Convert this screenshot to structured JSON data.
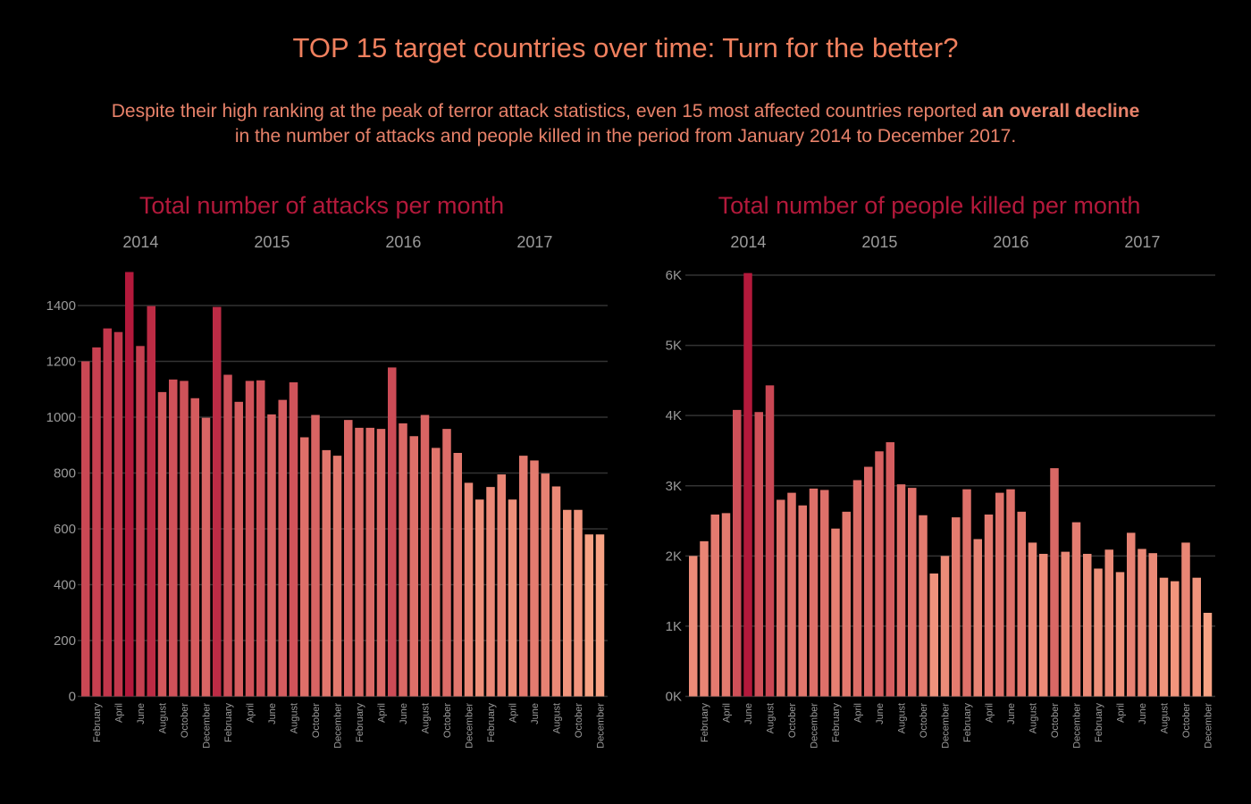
{
  "header": {
    "title": "TOP 15 target countries over time: Turn for the better?",
    "subtitle_part1": "Despite their high ranking at the peak of terror attack statistics, even 15 most affected countries reported ",
    "subtitle_bold": "an overall decline",
    "subtitle_part2": "in the number of attacks and people killed in the period from January 2014 to December 2017."
  },
  "colors": {
    "background": "#000000",
    "title": "#f0805e",
    "chart_title": "#b3193b",
    "bar_dark": "#b3193b",
    "bar_light": "#f7a284"
  },
  "chart_data": [
    {
      "type": "bar",
      "title": "Total number of attacks per month",
      "years": [
        "2014",
        "2015",
        "2016",
        "2017"
      ],
      "month_ticks": [
        "February",
        "April",
        "June",
        "August",
        "October",
        "December"
      ],
      "ylim": [
        0,
        1500
      ],
      "yticks": [
        0,
        200,
        400,
        600,
        800,
        1000,
        1200,
        1400
      ],
      "ytick_labels": [
        "0",
        "200",
        "400",
        "600",
        "800",
        "1000",
        "1200",
        "1400"
      ],
      "values": [
        1200,
        1250,
        1318,
        1305,
        1520,
        1255,
        1398,
        1090,
        1135,
        1130,
        1068,
        998,
        1395,
        1152,
        1055,
        1130,
        1132,
        1010,
        1062,
        1125,
        928,
        1008,
        882,
        862,
        990,
        962,
        962,
        958,
        1178,
        978,
        932,
        1008,
        890,
        958,
        872,
        765,
        705,
        750,
        795,
        705,
        862,
        845,
        798,
        752,
        668,
        668,
        580,
        580
      ]
    },
    {
      "type": "bar",
      "title": "Total number of people killed per month",
      "years": [
        "2014",
        "2015",
        "2016",
        "2017"
      ],
      "month_ticks": [
        "February",
        "April",
        "June",
        "August",
        "October",
        "December"
      ],
      "ylim": [
        0,
        6000
      ],
      "yticks": [
        0,
        1000,
        2000,
        3000,
        4000,
        5000,
        6000
      ],
      "ytick_labels": [
        "0K",
        "1K",
        "2K",
        "3K",
        "4K",
        "5K",
        "6K"
      ],
      "values": [
        2000,
        2210,
        2590,
        2610,
        4080,
        6030,
        4050,
        4430,
        2800,
        2900,
        2720,
        2960,
        2940,
        2390,
        2630,
        3080,
        3270,
        3490,
        3620,
        3020,
        2970,
        2580,
        1750,
        2000,
        2550,
        2950,
        2240,
        2590,
        2900,
        2950,
        2630,
        2190,
        2030,
        3250,
        2060,
        2480,
        2030,
        1820,
        2090,
        1770,
        2330,
        2100,
        2040,
        1690,
        1640,
        2190,
        1690,
        1190
      ]
    }
  ]
}
